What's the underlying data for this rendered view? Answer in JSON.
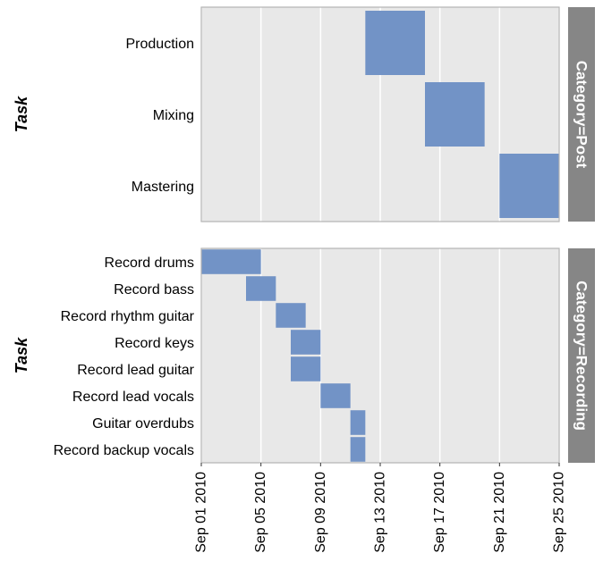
{
  "chart_data": {
    "type": "gantt",
    "x_axis": {
      "ticks": [
        "Sep 01 2010",
        "Sep 05 2010",
        "Sep 09 2010",
        "Sep 13 2010",
        "Sep 17 2010",
        "Sep 21 2010",
        "Sep 25 2010"
      ],
      "range": [
        "2010-09-01",
        "2010-09-25"
      ]
    },
    "y_axis_title": "Task",
    "grid": true,
    "colors": {
      "bar": "#7293c6",
      "panel": "#e8e8e8",
      "strip": "#868686",
      "grid": "#ffffff",
      "border": "#b3b3b3"
    },
    "panels": [
      {
        "strip_label": "Category=Post",
        "tasks": [
          {
            "task": "Production",
            "start": "2010-09-12",
            "finish": "2010-09-16"
          },
          {
            "task": "Mixing",
            "start": "2010-09-16",
            "finish": "2010-09-20"
          },
          {
            "task": "Mastering",
            "start": "2010-09-21",
            "finish": "2010-09-25"
          }
        ]
      },
      {
        "strip_label": "Category=Recording",
        "tasks": [
          {
            "task": "Record drums",
            "start": "2010-09-01",
            "finish": "2010-09-05"
          },
          {
            "task": "Record bass",
            "start": "2010-09-04",
            "finish": "2010-09-06"
          },
          {
            "task": "Record rhythm guitar",
            "start": "2010-09-06",
            "finish": "2010-09-08"
          },
          {
            "task": "Record keys",
            "start": "2010-09-07",
            "finish": "2010-09-09"
          },
          {
            "task": "Record lead guitar",
            "start": "2010-09-07",
            "finish": "2010-09-09"
          },
          {
            "task": "Record lead vocals",
            "start": "2010-09-09",
            "finish": "2010-09-11"
          },
          {
            "task": "Guitar overdubs",
            "start": "2010-09-11",
            "finish": "2010-09-12"
          },
          {
            "task": "Record backup vocals",
            "start": "2010-09-11",
            "finish": "2010-09-12"
          }
        ]
      }
    ]
  }
}
